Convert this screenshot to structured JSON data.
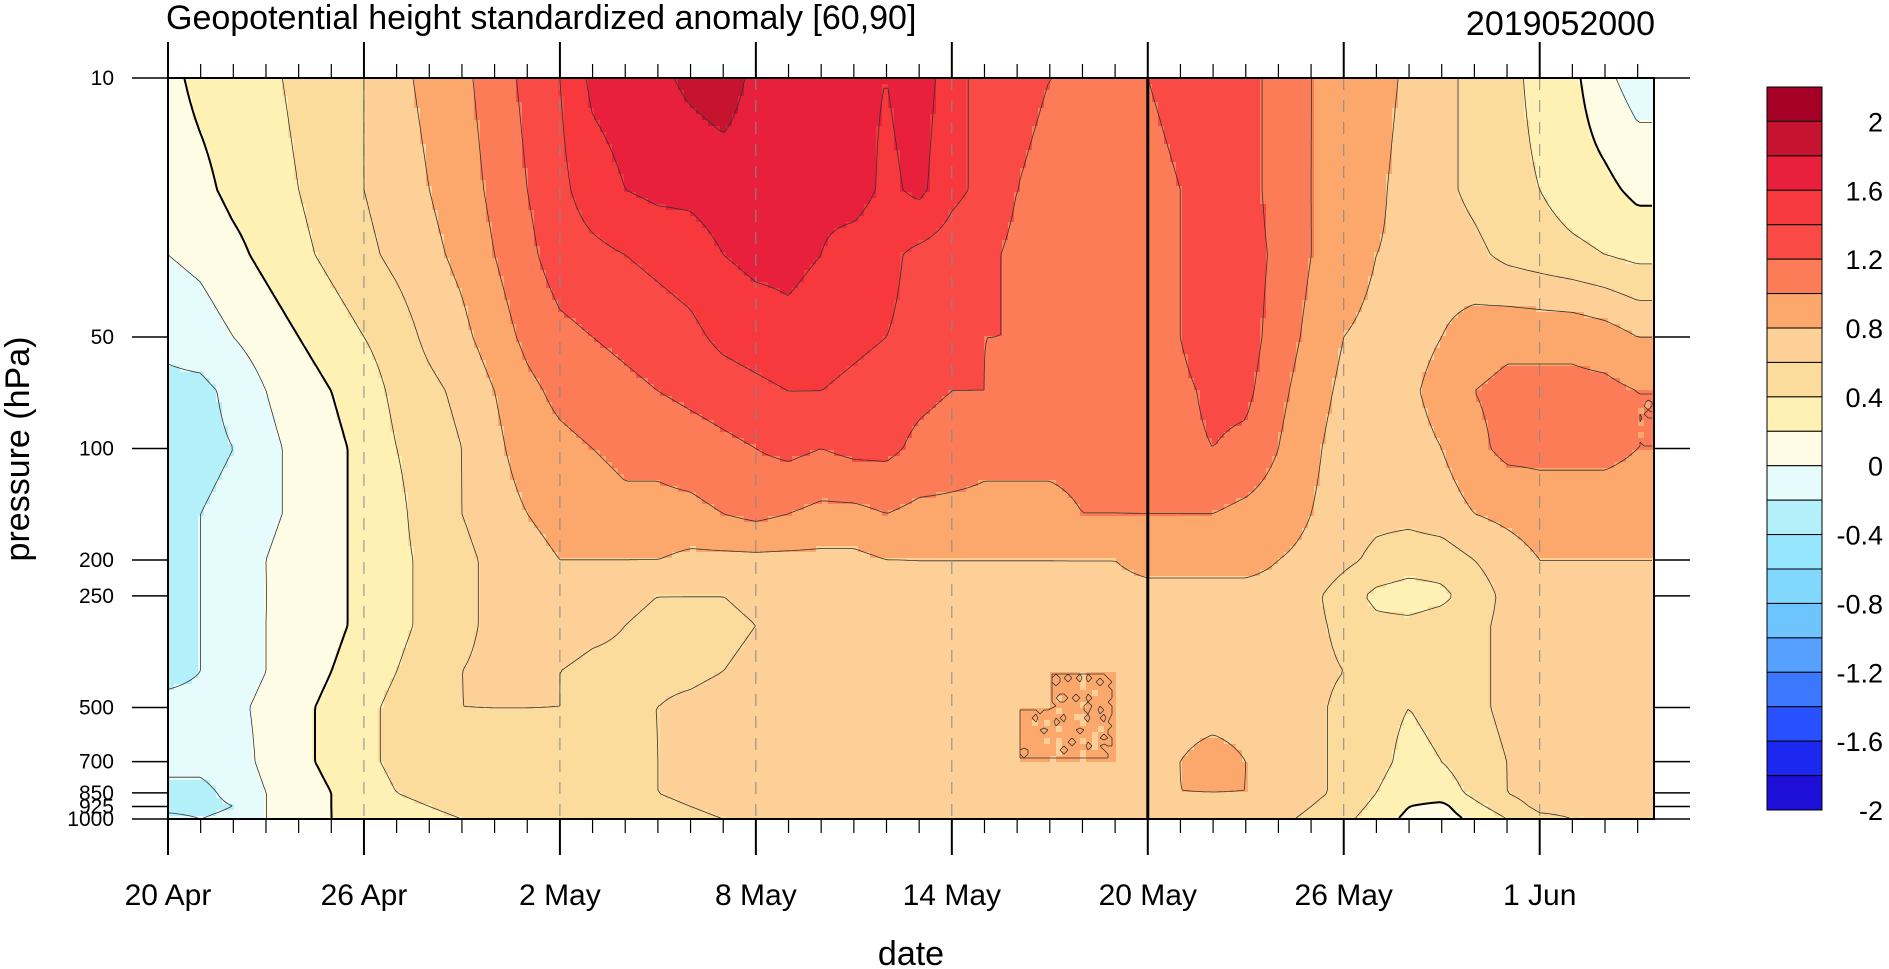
{
  "chart_data": {
    "type": "heatmap",
    "title": "Geopotential height standardized anomaly [60,90]",
    "subtitle": "2019052000",
    "xlabel": "date",
    "ylabel": "pressure (hPa)",
    "x_tick_labels": [
      "20 Apr",
      "26 Apr",
      "2 May",
      "8 May",
      "14 May",
      "20 May",
      "26 May",
      "1 Jun"
    ],
    "y_tick_labels": [
      "10",
      "50",
      "100",
      "200",
      "250",
      "500",
      "700",
      "850",
      "925",
      "1000"
    ],
    "colorbar_labels": [
      "2",
      "1.6",
      "1.2",
      "0.8",
      "0.4",
      "0",
      "-0.4",
      "-0.8",
      "-1.2",
      "-1.6",
      "-2"
    ],
    "levels": [
      -2.0,
      -1.8,
      -1.6,
      -1.4,
      -1.2,
      -1.0,
      -0.8,
      -0.6,
      -0.4,
      -0.2,
      0.0,
      0.2,
      0.4,
      0.6,
      0.8,
      1.0,
      1.2,
      1.4,
      1.6,
      1.8,
      2.0
    ],
    "level_colors": [
      "#1e0fd6",
      "#1c28f0",
      "#2850ff",
      "#3c78ff",
      "#56a0ff",
      "#6ec4ff",
      "#80d8ff",
      "#96e6ff",
      "#b4f0fa",
      "#e6fcfc",
      "#fffce6",
      "#fff0b4",
      "#fcdc9c",
      "#fcd096",
      "#fca86c",
      "#fc7c58",
      "#fa4a46",
      "#f7393d",
      "#e8203c",
      "#c61430",
      "#a50026"
    ],
    "current_date": "20 May",
    "x_days": [
      0,
      1,
      2,
      3,
      4,
      5,
      6,
      7,
      8,
      9,
      10,
      11,
      12,
      13,
      14,
      15,
      16,
      17,
      18,
      19,
      20,
      21,
      22,
      23,
      24,
      25,
      26,
      27,
      28,
      29,
      30,
      31,
      32,
      33,
      34,
      35,
      36,
      37,
      38,
      39,
      40,
      41,
      42,
      43,
      44,
      45
    ],
    "pressure_levels": [
      10,
      20,
      30,
      50,
      70,
      100,
      150,
      200,
      250,
      300,
      400,
      500,
      700,
      850,
      925,
      1000
    ],
    "values": [
      [
        -0.05,
        0.05,
        0.1,
        0.15,
        0.25,
        0.35,
        0.4,
        0.55,
        0.65,
        0.75,
        0.9,
        1.05,
        1.2,
        1.45,
        1.5,
        1.55,
        1.65,
        1.7,
        1.55,
        1.5,
        1.45,
        1.45,
        1.4,
        1.5,
        1.3,
        1.1,
        1.05,
        1.0,
        1.0,
        1.0,
        1.0,
        1.05,
        1.2,
        1.1,
        0.9,
        0.8,
        0.75,
        0.7,
        0.55,
        0.45,
        0.35,
        0.25,
        0.15,
        0.05,
        -0.15,
        -0.3
      ],
      [
        -0.1,
        -0.05,
        0.05,
        0.1,
        0.2,
        0.3,
        0.4,
        0.5,
        0.6,
        0.7,
        0.85,
        1.0,
        1.15,
        1.3,
        1.4,
        1.45,
        1.45,
        1.5,
        1.5,
        1.45,
        1.45,
        1.5,
        1.35,
        1.45,
        1.25,
        1.15,
        1.0,
        0.95,
        0.95,
        0.95,
        0.95,
        1.0,
        1.15,
        1.1,
        0.9,
        0.8,
        0.7,
        0.65,
        0.5,
        0.45,
        0.35,
        0.25,
        0.2,
        0.1,
        0.05,
        -0.05
      ],
      [
        -0.2,
        -0.15,
        -0.05,
        0.05,
        0.15,
        0.25,
        0.35,
        0.45,
        0.55,
        0.65,
        0.8,
        0.95,
        1.1,
        1.15,
        1.2,
        1.25,
        1.3,
        1.4,
        1.45,
        1.45,
        1.4,
        1.3,
        1.25,
        1.15,
        1.1,
        1.05,
        0.95,
        0.9,
        0.85,
        0.85,
        0.95,
        1.0,
        1.15,
        1.1,
        0.95,
        0.8,
        0.7,
        0.6,
        0.55,
        0.5,
        0.45,
        0.35,
        0.3,
        0.25,
        0.2,
        0.15
      ],
      [
        -0.35,
        -0.3,
        -0.2,
        -0.1,
        0.0,
        0.1,
        0.2,
        0.3,
        0.45,
        0.55,
        0.7,
        0.85,
        0.95,
        1.0,
        1.05,
        1.1,
        1.15,
        1.25,
        1.3,
        1.35,
        1.3,
        1.25,
        1.2,
        1.15,
        1.05,
        1.0,
        1.0,
        0.95,
        0.9,
        0.9,
        0.95,
        1.0,
        1.15,
        1.1,
        0.9,
        0.75,
        0.6,
        0.55,
        0.5,
        0.6,
        0.7,
        0.75,
        0.75,
        0.75,
        0.7,
        0.6
      ],
      [
        -0.45,
        -0.45,
        -0.35,
        -0.2,
        -0.1,
        0.0,
        0.1,
        0.25,
        0.35,
        0.45,
        0.6,
        0.75,
        0.85,
        0.9,
        0.95,
        1.0,
        1.05,
        1.1,
        1.15,
        1.2,
        1.2,
        1.15,
        1.1,
        1.05,
        1.0,
        1.0,
        0.95,
        0.9,
        0.9,
        0.9,
        0.9,
        0.95,
        1.05,
        1.05,
        0.85,
        0.7,
        0.55,
        0.5,
        0.55,
        0.7,
        0.8,
        0.85,
        0.85,
        0.85,
        0.85,
        0.8
      ],
      [
        -0.45,
        -0.45,
        -0.4,
        -0.25,
        -0.15,
        -0.05,
        0.05,
        0.2,
        0.3,
        0.4,
        0.55,
        0.7,
        0.75,
        0.8,
        0.85,
        0.85,
        0.9,
        0.95,
        1.0,
        1.05,
        1.0,
        1.05,
        1.05,
        0.95,
        0.9,
        0.85,
        0.85,
        0.85,
        0.85,
        0.85,
        0.9,
        0.95,
        1.0,
        0.95,
        0.8,
        0.65,
        0.5,
        0.45,
        0.5,
        0.6,
        0.75,
        0.85,
        0.85,
        0.85,
        0.85,
        0.8
      ],
      [
        -0.45,
        -0.4,
        -0.35,
        -0.25,
        -0.15,
        -0.05,
        0.05,
        0.15,
        0.3,
        0.4,
        0.5,
        0.6,
        0.65,
        0.7,
        0.75,
        0.75,
        0.75,
        0.8,
        0.85,
        0.8,
        0.75,
        0.75,
        0.8,
        0.75,
        0.75,
        0.75,
        0.75,
        0.75,
        0.8,
        0.8,
        0.8,
        0.8,
        0.8,
        0.75,
        0.7,
        0.6,
        0.5,
        0.45,
        0.45,
        0.5,
        0.6,
        0.65,
        0.7,
        0.7,
        0.7,
        0.7
      ],
      [
        -0.45,
        -0.4,
        -0.3,
        -0.2,
        -0.1,
        -0.05,
        0.05,
        0.15,
        0.25,
        0.35,
        0.45,
        0.55,
        0.6,
        0.6,
        0.6,
        0.6,
        0.55,
        0.55,
        0.55,
        0.55,
        0.55,
        0.55,
        0.6,
        0.6,
        0.6,
        0.6,
        0.6,
        0.6,
        0.6,
        0.6,
        0.65,
        0.65,
        0.65,
        0.65,
        0.6,
        0.55,
        0.45,
        0.35,
        0.3,
        0.3,
        0.4,
        0.5,
        0.6,
        0.6,
        0.6,
        0.6
      ],
      [
        -0.45,
        -0.4,
        -0.3,
        -0.2,
        -0.15,
        -0.05,
        0.05,
        0.15,
        0.25,
        0.35,
        0.45,
        0.5,
        0.55,
        0.5,
        0.45,
        0.4,
        0.4,
        0.4,
        0.45,
        0.5,
        0.5,
        0.45,
        0.4,
        0.55,
        0.55,
        0.55,
        0.55,
        0.55,
        0.55,
        0.55,
        0.55,
        0.55,
        0.55,
        0.55,
        0.55,
        0.45,
        0.3,
        0.15,
        0.1,
        0.15,
        0.3,
        0.45,
        0.55,
        0.55,
        0.55,
        0.55
      ],
      [
        -0.45,
        -0.4,
        -0.3,
        -0.2,
        -0.1,
        -0.05,
        0.05,
        0.15,
        0.25,
        0.35,
        0.45,
        0.5,
        0.5,
        0.45,
        0.4,
        0.35,
        0.35,
        0.35,
        0.4,
        0.45,
        0.5,
        0.5,
        0.5,
        0.55,
        0.55,
        0.55,
        0.55,
        0.55,
        0.55,
        0.55,
        0.55,
        0.55,
        0.55,
        0.55,
        0.5,
        0.45,
        0.35,
        0.25,
        0.25,
        0.3,
        0.35,
        0.45,
        0.55,
        0.55,
        0.55,
        0.55
      ],
      [
        -0.45,
        -0.4,
        -0.3,
        -0.2,
        -0.1,
        0.0,
        0.1,
        0.2,
        0.3,
        0.4,
        0.45,
        0.45,
        0.4,
        0.35,
        0.35,
        0.35,
        0.35,
        0.4,
        0.45,
        0.5,
        0.55,
        0.55,
        0.5,
        0.5,
        0.55,
        0.55,
        0.55,
        0.6,
        0.6,
        0.6,
        0.6,
        0.55,
        0.55,
        0.55,
        0.5,
        0.45,
        0.4,
        0.3,
        0.25,
        0.3,
        0.35,
        0.45,
        0.55,
        0.55,
        0.55,
        0.55
      ],
      [
        -0.35,
        -0.35,
        -0.25,
        -0.15,
        -0.05,
        0.05,
        0.15,
        0.25,
        0.35,
        0.4,
        0.4,
        0.4,
        0.4,
        0.4,
        0.4,
        0.4,
        0.45,
        0.5,
        0.55,
        0.55,
        0.55,
        0.55,
        0.55,
        0.55,
        0.55,
        0.55,
        0.6,
        0.6,
        0.6,
        0.6,
        0.55,
        0.55,
        0.55,
        0.55,
        0.5,
        0.45,
        0.35,
        0.25,
        0.2,
        0.25,
        0.35,
        0.45,
        0.55,
        0.55,
        0.55,
        0.55
      ],
      [
        -0.35,
        -0.35,
        -0.3,
        -0.15,
        -0.05,
        0.05,
        0.15,
        0.25,
        0.3,
        0.35,
        0.35,
        0.35,
        0.35,
        0.35,
        0.35,
        0.4,
        0.45,
        0.5,
        0.55,
        0.6,
        0.55,
        0.55,
        0.5,
        0.55,
        0.6,
        0.6,
        0.6,
        0.6,
        0.6,
        0.6,
        0.6,
        0.6,
        0.65,
        0.6,
        0.55,
        0.45,
        0.35,
        0.25,
        0.15,
        0.2,
        0.3,
        0.4,
        0.55,
        0.55,
        0.55,
        0.55
      ],
      [
        -0.45,
        -0.45,
        -0.35,
        -0.2,
        -0.1,
        0.0,
        0.1,
        0.2,
        0.25,
        0.3,
        0.3,
        0.3,
        0.3,
        0.35,
        0.35,
        0.4,
        0.45,
        0.5,
        0.55,
        0.6,
        0.6,
        0.55,
        0.5,
        0.55,
        0.55,
        0.55,
        0.55,
        0.55,
        0.55,
        0.6,
        0.55,
        0.6,
        0.6,
        0.6,
        0.55,
        0.45,
        0.35,
        0.2,
        0.1,
        0.1,
        0.25,
        0.4,
        0.5,
        0.5,
        0.5,
        0.5
      ],
      [
        -0.45,
        -0.45,
        -0.4,
        -0.2,
        -0.1,
        0.0,
        0.1,
        0.15,
        0.2,
        0.25,
        0.25,
        0.25,
        0.25,
        0.3,
        0.3,
        0.35,
        0.4,
        0.45,
        0.5,
        0.55,
        0.55,
        0.5,
        0.5,
        0.5,
        0.5,
        0.5,
        0.55,
        0.55,
        0.55,
        0.55,
        0.55,
        0.55,
        0.55,
        0.55,
        0.5,
        0.4,
        0.3,
        0.15,
        0.0,
        -0.05,
        0.15,
        0.3,
        0.45,
        0.45,
        0.45,
        0.45
      ],
      [
        -0.35,
        -0.4,
        -0.35,
        -0.2,
        -0.1,
        0.0,
        0.05,
        0.1,
        0.15,
        0.2,
        0.2,
        0.2,
        0.25,
        0.25,
        0.25,
        0.3,
        0.35,
        0.4,
        0.45,
        0.5,
        0.5,
        0.45,
        0.45,
        0.45,
        0.45,
        0.5,
        0.5,
        0.5,
        0.5,
        0.5,
        0.5,
        0.5,
        0.5,
        0.5,
        0.45,
        0.35,
        0.25,
        0.1,
        -0.05,
        -0.1,
        0.05,
        0.2,
        0.35,
        0.4,
        0.4,
        0.4
      ]
    ]
  }
}
